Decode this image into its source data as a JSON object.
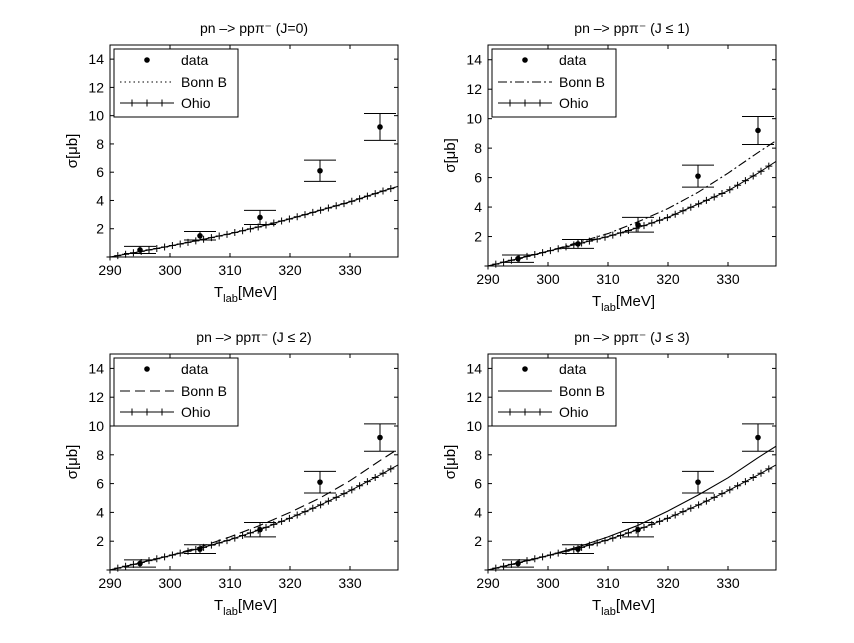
{
  "chart_data": [
    {
      "type": "scatter",
      "title": "pn –> ppπ⁻ (J=0)",
      "xlabel": "T",
      "xlabel_sub": "lab",
      "xlabel_unit": "[MeV]",
      "ylabel": "σ[μb]",
      "xlim": [
        290,
        338
      ],
      "ylim": [
        0,
        15
      ],
      "xticks": [
        "290",
        "300",
        "310",
        "320",
        "330"
      ],
      "yticks": [
        "2",
        "4",
        "6",
        "8",
        "10",
        "12",
        "14"
      ],
      "legend": {
        "position": "top-left",
        "entries": [
          "data",
          "Bonn B",
          "Ohio"
        ]
      },
      "bonn_style": "dotted",
      "data": {
        "x": [
          295,
          305,
          315,
          325,
          335
        ],
        "y": [
          0.5,
          1.5,
          2.8,
          6.1,
          9.2
        ],
        "err": [
          0.25,
          0.3,
          0.5,
          0.75,
          0.95
        ]
      },
      "series": [
        {
          "name": "Bonn B",
          "x": [
            290,
            295,
            300,
            305,
            310,
            315,
            320,
            325,
            330,
            335,
            338
          ],
          "y": [
            0.0,
            0.38,
            0.78,
            1.2,
            1.65,
            2.15,
            2.7,
            3.3,
            3.9,
            4.6,
            5.0
          ]
        },
        {
          "name": "Ohio",
          "x": [
            290,
            295,
            300,
            305,
            310,
            315,
            320,
            325,
            330,
            335,
            338
          ],
          "y": [
            0.0,
            0.38,
            0.78,
            1.2,
            1.65,
            2.15,
            2.7,
            3.3,
            3.9,
            4.6,
            5.0
          ]
        }
      ]
    },
    {
      "type": "scatter",
      "title": "pn –> ppπ⁻ (J ≤ 1)",
      "xlabel": "T",
      "xlabel_sub": "lab",
      "xlabel_unit": "[MeV]",
      "ylabel": "σ[μb]",
      "xlim": [
        290,
        338
      ],
      "ylim": [
        0,
        15
      ],
      "xticks": [
        "290",
        "300",
        "310",
        "320",
        "330"
      ],
      "yticks": [
        "2",
        "4",
        "6",
        "8",
        "10",
        "12",
        "14"
      ],
      "legend": {
        "position": "top-left",
        "entries": [
          "data",
          "Bonn B",
          "Ohio"
        ]
      },
      "bonn_style": "dashdot",
      "data": {
        "x": [
          295,
          305,
          315,
          325,
          335
        ],
        "y": [
          0.5,
          1.5,
          2.8,
          6.1,
          9.2
        ],
        "err": [
          0.25,
          0.3,
          0.5,
          0.75,
          0.95
        ]
      },
      "series": [
        {
          "name": "Bonn B",
          "x": [
            290,
            295,
            300,
            305,
            310,
            315,
            320,
            325,
            330,
            335,
            338
          ],
          "y": [
            0.0,
            0.5,
            1.0,
            1.6,
            2.2,
            3.0,
            3.9,
            5.0,
            6.3,
            7.7,
            8.5
          ]
        },
        {
          "name": "Ohio",
          "x": [
            290,
            295,
            300,
            305,
            310,
            315,
            320,
            325,
            330,
            335,
            338
          ],
          "y": [
            0.0,
            0.5,
            1.0,
            1.5,
            2.0,
            2.6,
            3.3,
            4.2,
            5.1,
            6.3,
            7.1
          ]
        }
      ]
    },
    {
      "type": "scatter",
      "title": "pn –> ppπ⁻ (J ≤ 2)",
      "xlabel": "T",
      "xlabel_sub": "lab",
      "xlabel_unit": "[MeV]",
      "ylabel": "σ[μb]",
      "xlim": [
        290,
        338
      ],
      "ylim": [
        0,
        15
      ],
      "xticks": [
        "290",
        "300",
        "310",
        "320",
        "330"
      ],
      "yticks": [
        "2",
        "4",
        "6",
        "8",
        "10",
        "12",
        "14"
      ],
      "legend": {
        "position": "top-left",
        "entries": [
          "data",
          "Bonn B",
          "Ohio"
        ]
      },
      "bonn_style": "dashed",
      "data": {
        "x": [
          295,
          305,
          315,
          325,
          335
        ],
        "y": [
          0.45,
          1.45,
          2.8,
          6.1,
          9.2
        ],
        "err": [
          0.25,
          0.3,
          0.5,
          0.75,
          0.95
        ]
      },
      "series": [
        {
          "name": "Bonn B",
          "x": [
            290,
            295,
            300,
            305,
            310,
            315,
            320,
            325,
            330,
            335,
            338
          ],
          "y": [
            0.0,
            0.5,
            1.0,
            1.6,
            2.3,
            3.1,
            4.0,
            5.0,
            6.2,
            7.6,
            8.4
          ]
        },
        {
          "name": "Ohio",
          "x": [
            290,
            295,
            300,
            305,
            310,
            315,
            320,
            325,
            330,
            335,
            338
          ],
          "y": [
            0.0,
            0.5,
            1.0,
            1.5,
            2.1,
            2.8,
            3.6,
            4.5,
            5.5,
            6.6,
            7.3
          ]
        }
      ]
    },
    {
      "type": "scatter",
      "title": "pn –> ppπ⁻ (J ≤ 3)",
      "xlabel": "T",
      "xlabel_sub": "lab",
      "xlabel_unit": "[MeV]",
      "ylabel": "σ[μb]",
      "xlim": [
        290,
        338
      ],
      "ylim": [
        0,
        15
      ],
      "xticks": [
        "290",
        "300",
        "310",
        "320",
        "330"
      ],
      "yticks": [
        "2",
        "4",
        "6",
        "8",
        "10",
        "12",
        "14"
      ],
      "legend": {
        "position": "top-left",
        "entries": [
          "data",
          "Bonn B",
          "Ohio"
        ]
      },
      "bonn_style": "solid",
      "data": {
        "x": [
          295,
          305,
          315,
          325,
          335
        ],
        "y": [
          0.45,
          1.45,
          2.8,
          6.1,
          9.2
        ],
        "err": [
          0.25,
          0.3,
          0.5,
          0.75,
          0.95
        ]
      },
      "series": [
        {
          "name": "Bonn B",
          "x": [
            290,
            295,
            300,
            305,
            310,
            315,
            320,
            325,
            330,
            335,
            338
          ],
          "y": [
            0.0,
            0.5,
            1.0,
            1.6,
            2.3,
            3.1,
            4.1,
            5.2,
            6.4,
            7.8,
            8.6
          ]
        },
        {
          "name": "Ohio",
          "x": [
            290,
            295,
            300,
            305,
            310,
            315,
            320,
            325,
            330,
            335,
            338
          ],
          "y": [
            0.0,
            0.5,
            1.0,
            1.5,
            2.1,
            2.8,
            3.6,
            4.5,
            5.5,
            6.6,
            7.3
          ]
        }
      ]
    }
  ]
}
